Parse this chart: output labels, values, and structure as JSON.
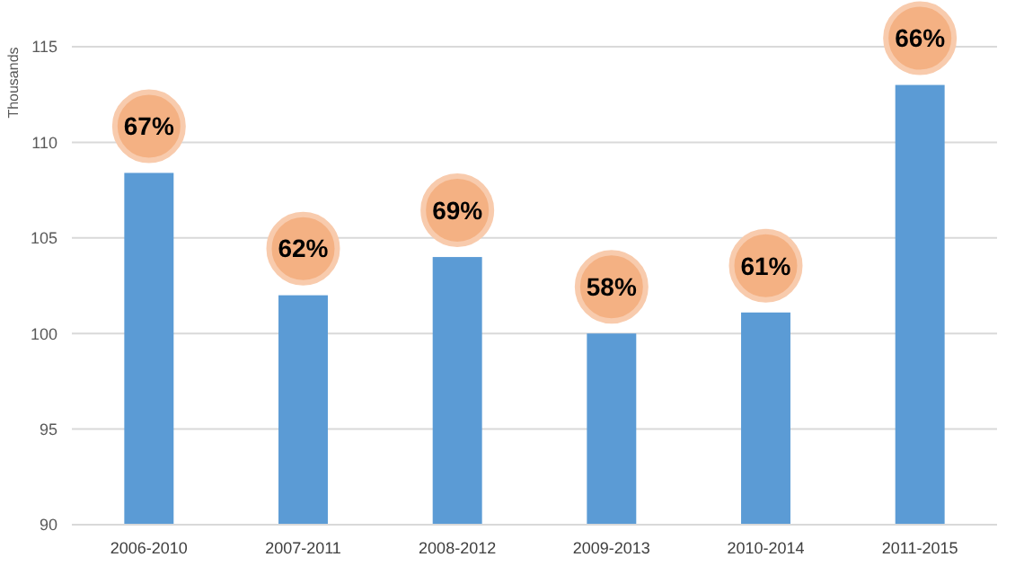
{
  "chart_data": {
    "type": "bar",
    "ylabel": "Thousands",
    "categories": [
      "2006-2010",
      "2007-2011",
      "2008-2012",
      "2009-2013",
      "2010-2014",
      "2011-2015"
    ],
    "values": [
      108.4,
      102,
      104,
      100,
      101.1,
      113
    ],
    "annotations": [
      {
        "text": "67%",
        "x": "2006-2010",
        "y": 108.4
      },
      {
        "text": "62%",
        "x": "2007-2011",
        "y": 102
      },
      {
        "text": "69%",
        "x": "2008-2012",
        "y": 104
      },
      {
        "text": "58%",
        "x": "2009-2013",
        "y": 100
      },
      {
        "text": "61%",
        "x": "2010-2014",
        "y": 101.1
      },
      {
        "text": "66%",
        "x": "2011-2015",
        "y": 113
      }
    ],
    "color": "#5b9bd5",
    "ylim": [
      90,
      115
    ],
    "yticks": [
      90,
      95,
      100,
      105,
      110,
      115
    ],
    "grid": "y"
  }
}
